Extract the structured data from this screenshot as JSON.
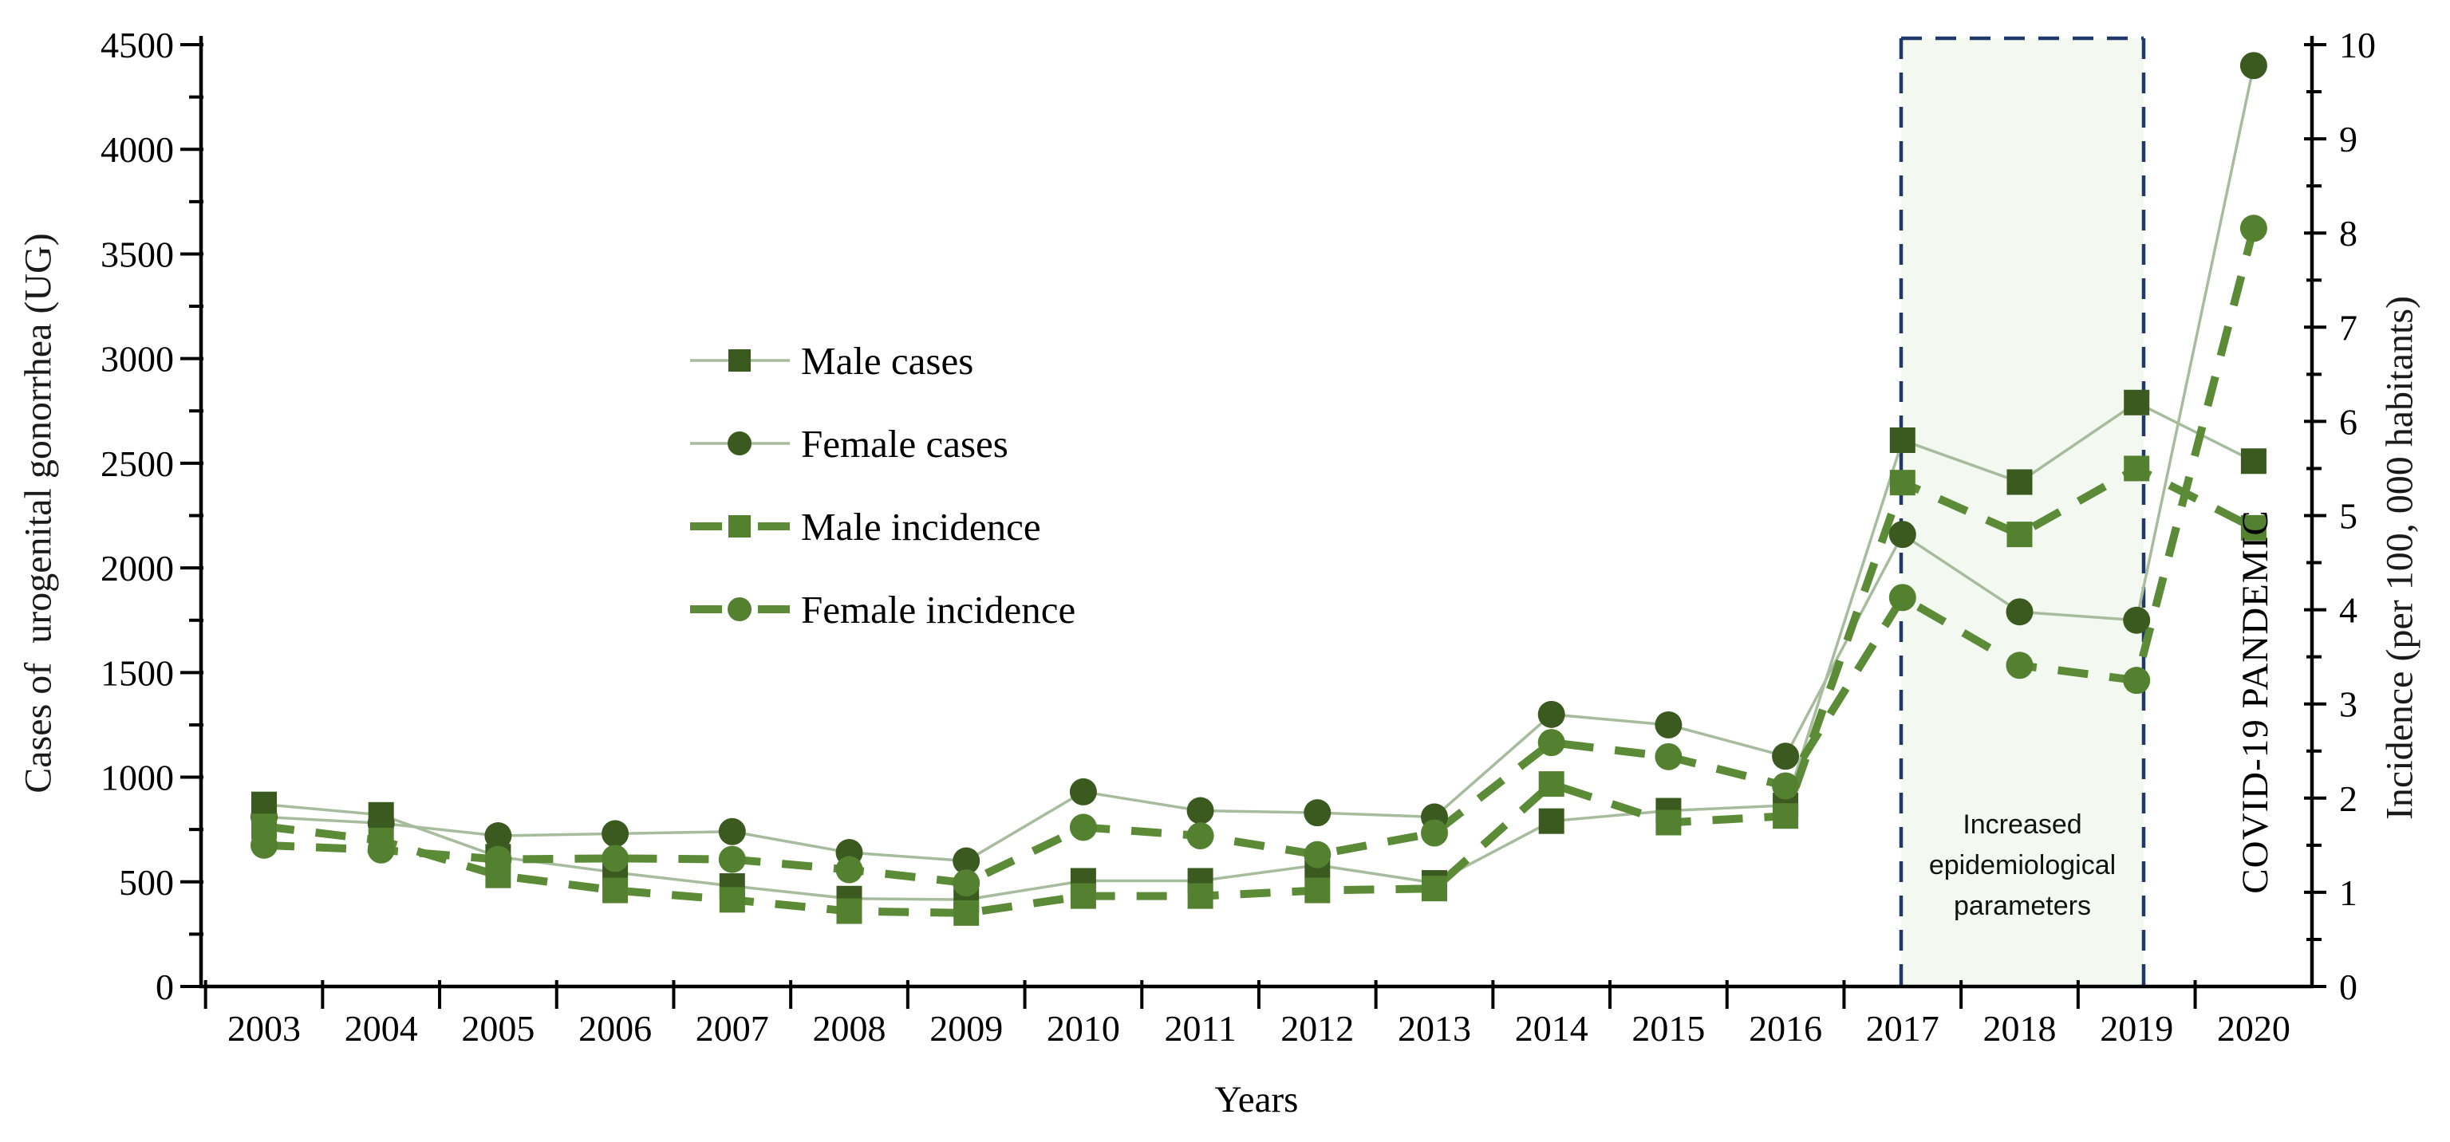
{
  "figure": {
    "left_axis": {
      "title": "Cases of  urogenital gonorrhea (UG)",
      "min": 0,
      "max": 4500,
      "major_step": 500,
      "minor_step": 250
    },
    "right_axis": {
      "title": "Incidence (per 100, 000 habitants)",
      "min": 0,
      "max": 10,
      "major_step": 1,
      "minor_step": 0.5
    },
    "x_axis": {
      "title": "Years"
    },
    "annotation_region": {
      "label_lines": [
        "Increased",
        "epidemiological",
        "parameters"
      ],
      "from_year": 2017,
      "to_year": 2019,
      "fill": "#f3f8f1",
      "border_color": "#1f3a68"
    },
    "covid_label": "COVID-19 PANDEMIC",
    "colors": {
      "cases_marker": "#3a5a20",
      "cases_line": "#a6bc9d",
      "incidence_marker": "#54812f",
      "incidence_line": "#5c8b37",
      "axis": "#000000"
    }
  },
  "chart_data": {
    "type": "line",
    "x": [
      2003,
      2004,
      2005,
      2006,
      2007,
      2008,
      2009,
      2010,
      2011,
      2012,
      2013,
      2014,
      2015,
      2016,
      2017,
      2018,
      2019,
      2020
    ],
    "series": [
      {
        "name": "Male cases",
        "axis": "left",
        "style": "solid-thin",
        "marker": "square",
        "marker_color": "#3a5a20",
        "line_color": "#a6bc9d",
        "values": [
          870,
          820,
          620,
          545,
          480,
          420,
          415,
          505,
          505,
          580,
          495,
          790,
          840,
          865,
          2610,
          2410,
          2790,
          2510
        ]
      },
      {
        "name": "Female cases",
        "axis": "left",
        "style": "solid-thin",
        "marker": "circle",
        "marker_color": "#3a5a20",
        "line_color": "#a6bc9d",
        "values": [
          810,
          780,
          720,
          730,
          740,
          640,
          600,
          930,
          840,
          830,
          810,
          1300,
          1250,
          1100,
          2160,
          1790,
          1750,
          4400
        ]
      },
      {
        "name": "Male incidence",
        "axis": "right",
        "style": "dashed-thick",
        "marker": "square",
        "marker_color": "#54812f",
        "line_color": "#5c8b37",
        "values": [
          1.7,
          1.55,
          1.18,
          1.02,
          0.92,
          0.8,
          0.78,
          0.96,
          0.96,
          1.02,
          1.04,
          2.15,
          1.74,
          1.81,
          5.35,
          4.8,
          5.5,
          4.87
        ]
      },
      {
        "name": "Female incidence",
        "axis": "right",
        "style": "dashed-thick",
        "marker": "circle",
        "marker_color": "#54812f",
        "line_color": "#5c8b37",
        "values": [
          1.5,
          1.45,
          1.35,
          1.36,
          1.35,
          1.24,
          1.1,
          1.69,
          1.6,
          1.4,
          1.63,
          2.59,
          2.44,
          2.13,
          4.13,
          3.41,
          3.25,
          8.05
        ]
      }
    ],
    "title": "",
    "xlabel": "Years",
    "ylabel": "Cases of  urogenital gonorrhea (UG)",
    "y2label": "Incidence (per 100, 000 habitants)",
    "ylim": [
      0,
      4500
    ],
    "y2lim": [
      0,
      10
    ],
    "grid": false,
    "legend_position": "inside-upper-left"
  }
}
